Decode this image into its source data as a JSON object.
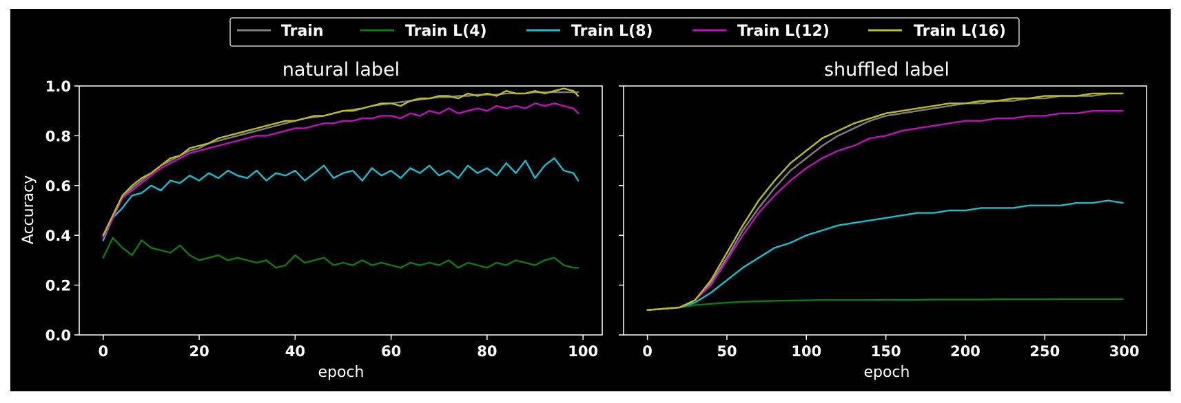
{
  "chart_data": [
    {
      "type": "line",
      "title": "natural label",
      "xlabel": "epoch",
      "ylabel": "Accuracy",
      "xlim": [
        -5,
        104
      ],
      "ylim": [
        0.0,
        1.0
      ],
      "xticks": [
        "0",
        "20",
        "40",
        "60",
        "80",
        "100"
      ],
      "yticks": [
        "0.0",
        "0.2",
        "0.4",
        "0.6",
        "0.8",
        "1.0"
      ],
      "x": [
        0,
        2,
        4,
        6,
        8,
        10,
        12,
        14,
        16,
        18,
        20,
        22,
        24,
        26,
        28,
        30,
        32,
        34,
        36,
        38,
        40,
        42,
        44,
        46,
        48,
        50,
        52,
        54,
        56,
        58,
        60,
        62,
        64,
        66,
        68,
        70,
        72,
        74,
        76,
        78,
        80,
        82,
        84,
        86,
        88,
        90,
        92,
        94,
        96,
        98,
        99
      ],
      "series": [
        {
          "name": "Train",
          "color": "#808080",
          "values": [
            0.4,
            0.47,
            0.55,
            0.59,
            0.62,
            0.65,
            0.68,
            0.7,
            0.72,
            0.74,
            0.75,
            0.77,
            0.78,
            0.79,
            0.8,
            0.81,
            0.82,
            0.83,
            0.84,
            0.85,
            0.86,
            0.87,
            0.875,
            0.88,
            0.89,
            0.9,
            0.905,
            0.91,
            0.92,
            0.925,
            0.93,
            0.935,
            0.94,
            0.945,
            0.95,
            0.955,
            0.955,
            0.96,
            0.96,
            0.965,
            0.965,
            0.965,
            0.97,
            0.97,
            0.97,
            0.975,
            0.975,
            0.975,
            0.975,
            0.975,
            0.975
          ]
        },
        {
          "name": "Train L(4)",
          "color": "#0e7c0e",
          "values": [
            0.31,
            0.39,
            0.35,
            0.32,
            0.38,
            0.35,
            0.34,
            0.33,
            0.36,
            0.32,
            0.3,
            0.31,
            0.32,
            0.3,
            0.31,
            0.3,
            0.29,
            0.3,
            0.27,
            0.28,
            0.32,
            0.29,
            0.3,
            0.31,
            0.28,
            0.29,
            0.28,
            0.3,
            0.28,
            0.29,
            0.28,
            0.27,
            0.29,
            0.28,
            0.29,
            0.28,
            0.3,
            0.27,
            0.29,
            0.28,
            0.27,
            0.29,
            0.28,
            0.3,
            0.29,
            0.28,
            0.3,
            0.31,
            0.28,
            0.27,
            0.27
          ]
        },
        {
          "name": "Train L(8)",
          "color": "#17bfcf",
          "values": [
            0.38,
            0.47,
            0.51,
            0.56,
            0.57,
            0.6,
            0.58,
            0.62,
            0.61,
            0.64,
            0.62,
            0.65,
            0.63,
            0.66,
            0.64,
            0.63,
            0.66,
            0.62,
            0.65,
            0.64,
            0.66,
            0.62,
            0.65,
            0.68,
            0.63,
            0.65,
            0.66,
            0.62,
            0.67,
            0.64,
            0.66,
            0.63,
            0.67,
            0.65,
            0.68,
            0.64,
            0.66,
            0.63,
            0.68,
            0.65,
            0.67,
            0.64,
            0.69,
            0.65,
            0.7,
            0.63,
            0.68,
            0.71,
            0.66,
            0.65,
            0.62
          ]
        },
        {
          "name": "Train L(12)",
          "color": "#c010c0",
          "values": [
            0.39,
            0.47,
            0.55,
            0.58,
            0.61,
            0.64,
            0.67,
            0.69,
            0.71,
            0.73,
            0.74,
            0.75,
            0.76,
            0.77,
            0.78,
            0.79,
            0.8,
            0.8,
            0.81,
            0.82,
            0.83,
            0.83,
            0.84,
            0.85,
            0.85,
            0.86,
            0.86,
            0.87,
            0.87,
            0.88,
            0.88,
            0.87,
            0.89,
            0.88,
            0.9,
            0.89,
            0.91,
            0.89,
            0.9,
            0.91,
            0.9,
            0.92,
            0.91,
            0.92,
            0.91,
            0.93,
            0.92,
            0.93,
            0.92,
            0.91,
            0.89
          ]
        },
        {
          "name": "Train L(16)",
          "color": "#bcbd22",
          "values": [
            0.4,
            0.48,
            0.56,
            0.6,
            0.63,
            0.65,
            0.68,
            0.71,
            0.72,
            0.75,
            0.76,
            0.77,
            0.79,
            0.8,
            0.81,
            0.82,
            0.83,
            0.84,
            0.85,
            0.86,
            0.86,
            0.87,
            0.88,
            0.88,
            0.89,
            0.9,
            0.9,
            0.91,
            0.92,
            0.93,
            0.93,
            0.92,
            0.94,
            0.95,
            0.95,
            0.96,
            0.96,
            0.95,
            0.97,
            0.96,
            0.97,
            0.96,
            0.98,
            0.97,
            0.97,
            0.98,
            0.97,
            0.98,
            0.99,
            0.98,
            0.96
          ]
        }
      ]
    },
    {
      "type": "line",
      "title": "shuffled label",
      "xlabel": "epoch",
      "ylabel": "",
      "xlim": [
        -15,
        314
      ],
      "ylim": [
        0.0,
        1.0
      ],
      "xticks": [
        "0",
        "50",
        "100",
        "150",
        "200",
        "250",
        "300"
      ],
      "yticks": [],
      "x": [
        0,
        10,
        20,
        30,
        40,
        50,
        60,
        70,
        80,
        90,
        100,
        110,
        120,
        130,
        140,
        150,
        160,
        170,
        180,
        190,
        200,
        210,
        220,
        230,
        240,
        250,
        260,
        270,
        280,
        290,
        299
      ],
      "series": [
        {
          "name": "Train",
          "color": "#808080",
          "values": [
            0.1,
            0.105,
            0.11,
            0.14,
            0.21,
            0.31,
            0.42,
            0.51,
            0.59,
            0.66,
            0.71,
            0.76,
            0.8,
            0.83,
            0.86,
            0.88,
            0.89,
            0.9,
            0.91,
            0.92,
            0.93,
            0.93,
            0.94,
            0.94,
            0.95,
            0.95,
            0.96,
            0.96,
            0.96,
            0.97,
            0.97
          ]
        },
        {
          "name": "Train L(4)",
          "color": "#0e7c0e",
          "values": [
            0.1,
            0.105,
            0.11,
            0.12,
            0.125,
            0.13,
            0.133,
            0.135,
            0.137,
            0.138,
            0.139,
            0.14,
            0.14,
            0.14,
            0.14,
            0.141,
            0.141,
            0.141,
            0.142,
            0.142,
            0.142,
            0.142,
            0.143,
            0.143,
            0.143,
            0.143,
            0.144,
            0.144,
            0.144,
            0.144,
            0.144
          ]
        },
        {
          "name": "Train L(8)",
          "color": "#17bfcf",
          "values": [
            0.1,
            0.105,
            0.11,
            0.13,
            0.17,
            0.22,
            0.27,
            0.31,
            0.35,
            0.37,
            0.4,
            0.42,
            0.44,
            0.45,
            0.46,
            0.47,
            0.48,
            0.49,
            0.49,
            0.5,
            0.5,
            0.51,
            0.51,
            0.51,
            0.52,
            0.52,
            0.52,
            0.53,
            0.53,
            0.54,
            0.53
          ]
        },
        {
          "name": "Train L(12)",
          "color": "#c010c0",
          "values": [
            0.1,
            0.105,
            0.11,
            0.14,
            0.2,
            0.3,
            0.4,
            0.49,
            0.56,
            0.62,
            0.67,
            0.71,
            0.74,
            0.76,
            0.79,
            0.8,
            0.82,
            0.83,
            0.84,
            0.85,
            0.86,
            0.86,
            0.87,
            0.87,
            0.88,
            0.88,
            0.89,
            0.89,
            0.9,
            0.9,
            0.9
          ]
        },
        {
          "name": "Train L(16)",
          "color": "#bcbd22",
          "values": [
            0.1,
            0.105,
            0.11,
            0.14,
            0.22,
            0.33,
            0.44,
            0.54,
            0.62,
            0.69,
            0.74,
            0.79,
            0.82,
            0.85,
            0.87,
            0.89,
            0.9,
            0.91,
            0.92,
            0.93,
            0.93,
            0.94,
            0.94,
            0.95,
            0.95,
            0.96,
            0.96,
            0.96,
            0.97,
            0.97,
            0.97
          ]
        }
      ]
    }
  ],
  "legend": {
    "placement": "top-center",
    "entries": [
      {
        "label": "Train",
        "color": "#808080"
      },
      {
        "label": "Train L(4)",
        "color": "#0e7c0e"
      },
      {
        "label": "Train L(8)",
        "color": "#17bfcf"
      },
      {
        "label": "Train L(12)",
        "color": "#c010c0"
      },
      {
        "label": "Train L(16)",
        "color": "#bcbd22"
      }
    ]
  },
  "colors": {
    "background": "#000000",
    "frame": "#ffffff",
    "text": "#ffffff"
  }
}
